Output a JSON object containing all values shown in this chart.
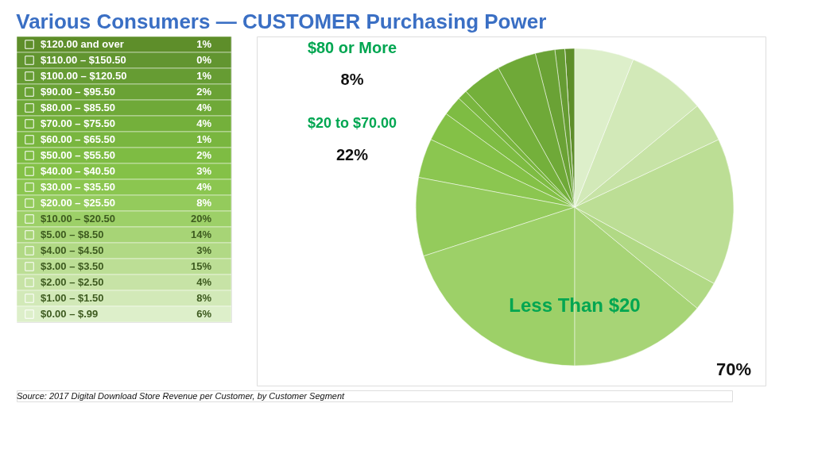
{
  "chart_data": {
    "type": "pie",
    "title": "Various Consumers — CUSTOMER Purchasing Power",
    "categories": [
      "$120.00 and over",
      "$110.00 – $150.50",
      "$100.00 – $120.50",
      "$90.00 – $95.50",
      "$80.00 – $85.50",
      "$70.00 – $75.50",
      "$60.00 – $65.50",
      "$50.00 – $55.50",
      "$40.00 – $40.50",
      "$30.00 – $35.50",
      "$20.00 – $25.50",
      "$10.00 – $20.50",
      "$5.00 – $8.50",
      "$4.00 – $4.50",
      "$3.00 – $3.50",
      "$2.00 – $2.50",
      "$1.00 – $1.50",
      "$0.00 – $.99"
    ],
    "values": [
      1,
      0,
      1,
      2,
      4,
      4,
      1,
      2,
      3,
      4,
      8,
      20,
      14,
      3,
      15,
      4,
      8,
      6
    ],
    "value_labels": [
      "1%",
      "0%",
      "1%",
      "2%",
      "4%",
      "4%",
      "1%",
      "2%",
      "3%",
      "4%",
      "8%",
      "20%",
      "14%",
      "3%",
      "15%",
      "4%",
      "8%",
      "6%"
    ],
    "colors": [
      "#5e8e2a",
      "#629530",
      "#669c33",
      "#6aa235",
      "#6fa938",
      "#74b03b",
      "#79b63f",
      "#7ebc43",
      "#84c147",
      "#8bc650",
      "#94cb5c",
      "#9dd068",
      "#a7d476",
      "#b1d985",
      "#bcde95",
      "#c7e3a6",
      "#d2e9b8",
      "#ddefca"
    ],
    "legend": "left",
    "annotations": [
      "$80 or More",
      "8%",
      "$20 to $70.00",
      "22%",
      "Less Than $20",
      "70%",
      "Source: 2017 Digital Download Store Revenue per Customer, by Customer Segment"
    ]
  }
}
